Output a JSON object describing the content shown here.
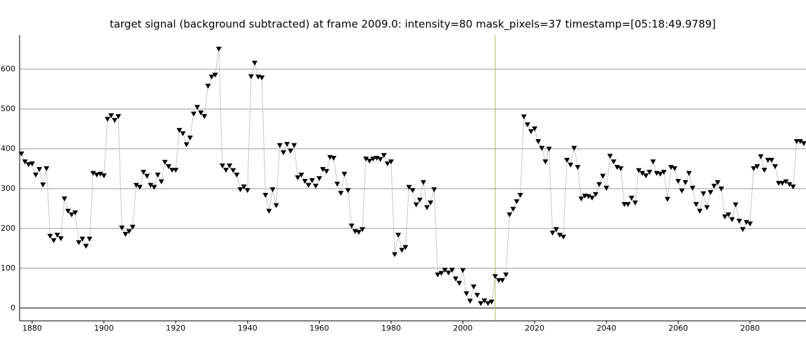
{
  "chart_data": {
    "type": "line",
    "title": "target signal (background subtracted) at frame 2009.0: intensity=80 mask_pixels=37 timestamp=[05:18:49.9789]",
    "x": [
      1877,
      1878,
      1879,
      1880,
      1881,
      1882,
      1883,
      1884,
      1885,
      1886,
      1887,
      1888,
      1889,
      1890,
      1891,
      1892,
      1893,
      1894,
      1895,
      1896,
      1897,
      1898,
      1899,
      1900,
      1901,
      1902,
      1903,
      1904,
      1905,
      1906,
      1907,
      1908,
      1909,
      1910,
      1911,
      1912,
      1913,
      1914,
      1915,
      1916,
      1917,
      1918,
      1919,
      1920,
      1921,
      1922,
      1923,
      1924,
      1925,
      1926,
      1927,
      1928,
      1929,
      1930,
      1931,
      1932,
      1933,
      1934,
      1935,
      1936,
      1937,
      1938,
      1939,
      1940,
      1941,
      1942,
      1943,
      1944,
      1945,
      1946,
      1947,
      1948,
      1949,
      1950,
      1951,
      1952,
      1953,
      1954,
      1955,
      1956,
      1957,
      1958,
      1959,
      1960,
      1961,
      1962,
      1963,
      1964,
      1965,
      1966,
      1967,
      1968,
      1969,
      1970,
      1971,
      1972,
      1973,
      1974,
      1975,
      1976,
      1977,
      1978,
      1979,
      1980,
      1981,
      1982,
      1983,
      1984,
      1985,
      1986,
      1987,
      1988,
      1989,
      1990,
      1991,
      1992,
      1993,
      1994,
      1995,
      1996,
      1997,
      1998,
      1999,
      2000,
      2001,
      2002,
      2003,
      2004,
      2005,
      2006,
      2007,
      2008,
      2009,
      2010,
      2011,
      2012,
      2013,
      2014,
      2015,
      2016,
      2017,
      2018,
      2019,
      2020,
      2021,
      2022,
      2023,
      2024,
      2025,
      2026,
      2027,
      2028,
      2029,
      2030,
      2031,
      2032,
      2033,
      2034,
      2035,
      2036,
      2037,
      2038,
      2039,
      2040,
      2041,
      2042,
      2043,
      2044,
      2045,
      2046,
      2047,
      2048,
      2049,
      2050,
      2051,
      2052,
      2053,
      2054,
      2055,
      2056,
      2057,
      2058,
      2059,
      2060,
      2061,
      2062,
      2063,
      2064,
      2065,
      2066,
      2067,
      2068,
      2069,
      2070,
      2071,
      2072,
      2073,
      2074,
      2075,
      2076,
      2077,
      2078,
      2079,
      2080,
      2081,
      2082,
      2083,
      2084,
      2085,
      2086,
      2087,
      2088,
      2089,
      2090,
      2091,
      2092,
      2093,
      2094,
      2095
    ],
    "values": [
      388,
      368,
      361,
      363,
      335,
      349,
      310,
      351,
      181,
      170,
      184,
      175,
      275,
      244,
      235,
      240,
      165,
      174,
      156,
      174,
      339,
      335,
      337,
      333,
      475,
      484,
      472,
      482,
      202,
      186,
      193,
      204,
      309,
      304,
      342,
      332,
      309,
      304,
      335,
      318,
      367,
      356,
      347,
      347,
      447,
      439,
      411,
      428,
      488,
      505,
      491,
      482,
      558,
      581,
      586,
      651,
      358,
      347,
      358,
      346,
      335,
      298,
      305,
      296,
      582,
      616,
      581,
      579,
      284,
      244,
      298,
      258,
      409,
      391,
      412,
      395,
      409,
      328,
      335,
      319,
      309,
      321,
      307,
      326,
      349,
      344,
      379,
      377,
      312,
      289,
      337,
      296,
      207,
      193,
      191,
      198,
      375,
      370,
      375,
      377,
      374,
      384,
      363,
      368,
      135,
      184,
      146,
      153,
      304,
      296,
      260,
      272,
      316,
      253,
      265,
      298,
      84,
      88,
      96,
      89,
      96,
      74,
      63,
      95,
      37,
      18,
      54,
      33,
      12,
      19,
      12,
      16,
      80,
      70,
      70,
      84,
      235,
      249,
      268,
      284,
      481,
      461,
      444,
      451,
      419,
      402,
      368,
      400,
      189,
      198,
      184,
      179,
      372,
      360,
      402,
      354,
      275,
      282,
      281,
      277,
      286,
      311,
      332,
      302,
      382,
      368,
      354,
      351,
      261,
      261,
      277,
      265,
      346,
      339,
      333,
      342,
      368,
      339,
      337,
      342,
      274,
      354,
      351,
      319,
      295,
      316,
      339,
      302,
      261,
      244,
      288,
      253,
      291,
      307,
      316,
      300,
      230,
      235,
      223,
      260,
      219,
      198,
      216,
      212,
      351,
      356,
      381,
      347,
      372,
      372,
      356,
      314,
      314,
      318,
      311,
      305,
      419,
      419,
      414
    ],
    "color": "#000000",
    "line_color": "#c8c8c8",
    "xlim": [
      1876.5,
      2095.6
    ],
    "ylim": [
      -32,
      686
    ],
    "xticks": [
      1880,
      1900,
      1920,
      1940,
      1960,
      1980,
      2000,
      2020,
      2040,
      2060,
      2080
    ],
    "yticks": [
      0,
      100,
      200,
      300,
      400,
      500,
      600
    ],
    "grid": true,
    "vline": 2009,
    "vline_color": "#a8c050"
  }
}
